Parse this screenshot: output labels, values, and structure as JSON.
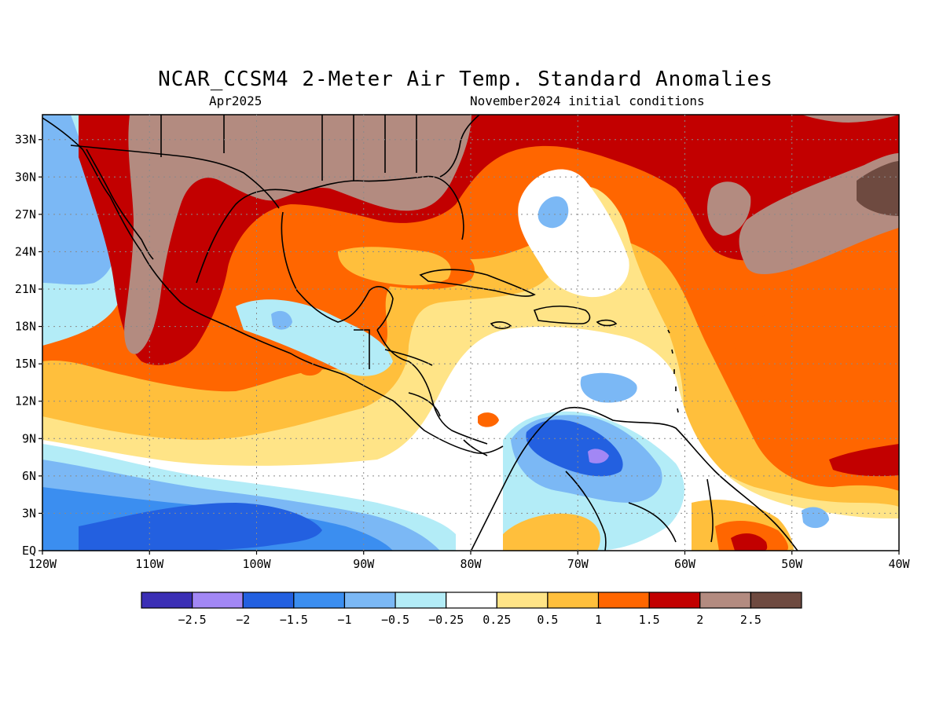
{
  "header": {
    "title": "NCAR_CCSM4 2-Meter Air Temp. Standard Anomalies",
    "valid_month": "Apr2025",
    "init_conditions": "November2024 initial conditions"
  },
  "map": {
    "lat_labels": [
      "33N",
      "30N",
      "27N",
      "24N",
      "21N",
      "18N",
      "15N",
      "12N",
      "9N",
      "6N",
      "3N",
      "EQ"
    ],
    "lat_values": [
      33,
      30,
      27,
      24,
      21,
      18,
      15,
      12,
      9,
      6,
      3,
      0
    ],
    "lon_labels": [
      "120W",
      "110W",
      "100W",
      "90W",
      "80W",
      "70W",
      "60W",
      "50W",
      "40W"
    ],
    "lon_values": [
      -120,
      -110,
      -100,
      -90,
      -80,
      -70,
      -60,
      -50,
      -40
    ],
    "extent": {
      "west": -120,
      "east": -40,
      "south": 0,
      "north": 35
    },
    "gridlines": "dotted"
  },
  "legend": {
    "colors": [
      "#3b2fb5",
      "#a287f5",
      "#2360e0",
      "#3b8ef0",
      "#7bb8f5",
      "#b3ecf7",
      "#ffffff",
      "#ffe487",
      "#ffbf3c",
      "#ff6600",
      "#c20000",
      "#b38b80",
      "#6e4a40"
    ],
    "labels": [
      "-2.5",
      "-2",
      "-1.5",
      "-1",
      "-0.5",
      "-0.25",
      "0.25",
      "0.5",
      "1",
      "1.5",
      "2",
      "2.5"
    ]
  }
}
